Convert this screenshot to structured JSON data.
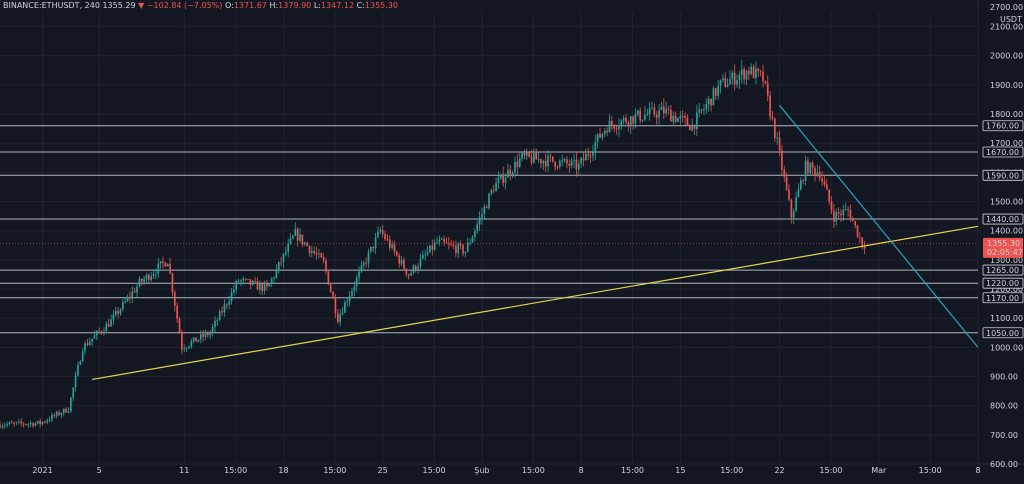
{
  "header": {
    "symbol": "BINANCE:ETHUSDT, 240",
    "last": "1355.29",
    "change": "▼ −102.84 (−7.05%)",
    "open_label": "O:",
    "open": "1371.67",
    "high_label": "H:",
    "high": "1379.90",
    "low_label": "L:",
    "low": "1347.12",
    "close_label": "C:",
    "close": "1355.30"
  },
  "price_badge": {
    "price": "1355.30",
    "countdown": "02:05:47",
    "color": "#ef5350"
  },
  "colors": {
    "up": "#26a69a",
    "down": "#ef5350",
    "trend_support": "#e5d54a",
    "trend_resistance": "#29a3c4",
    "level": "#b2b5be",
    "background": "#131722",
    "grid": "#1f2331"
  },
  "chart_data": {
    "type": "candlestick",
    "title": "",
    "symbol": "BINANCE:ETHUSDT",
    "interval": "240",
    "currency": "USDT",
    "y_axis": {
      "range": [
        600,
        2700
      ],
      "ticks": [
        600,
        700,
        800,
        900,
        1000,
        1100,
        1200,
        1300,
        1400,
        1500,
        1600,
        1700,
        1800,
        1900,
        2000,
        2100
      ],
      "tick_labels": [
        "600.00",
        "700.00",
        "800.00",
        "900.00",
        "1000.00",
        "1100.00",
        "1200.00",
        "1300.00",
        "1400.00",
        "1500.00",
        "1600.00",
        "1700.00",
        "1800.00",
        "1900.00",
        "2000.00",
        "2100.00"
      ],
      "top_label": "2700.00",
      "unit_label": "USDT"
    },
    "x_axis": {
      "range": [
        "2020-12-29",
        "2021-03-08"
      ],
      "ticks": [
        {
          "t": "2021-01-01",
          "label": "2021"
        },
        {
          "t": "2021-01-05",
          "label": "5"
        },
        {
          "t": "2021-01-11",
          "label": "11"
        },
        {
          "t": "2021-01-14 15:00",
          "label": "15:00"
        },
        {
          "t": "2021-01-18",
          "label": "18"
        },
        {
          "t": "2021-01-21 15:00",
          "label": "15:00"
        },
        {
          "t": "2021-01-25",
          "label": "25"
        },
        {
          "t": "2021-01-28 15:00",
          "label": "15:00"
        },
        {
          "t": "2021-02-01",
          "label": "Şub"
        },
        {
          "t": "2021-02-04 15:00",
          "label": "15:00"
        },
        {
          "t": "2021-02-08",
          "label": "8"
        },
        {
          "t": "2021-02-11 15:00",
          "label": "15:00"
        },
        {
          "t": "2021-02-15",
          "label": "15"
        },
        {
          "t": "2021-02-18 15:00",
          "label": "15:00"
        },
        {
          "t": "2021-02-22",
          "label": "22"
        },
        {
          "t": "2021-02-25 15:00",
          "label": "15:00"
        },
        {
          "t": "2021-03-01",
          "label": "Mar"
        },
        {
          "t": "2021-03-04 15:00",
          "label": "15:00"
        },
        {
          "t": "2021-03-08",
          "label": "8"
        }
      ]
    },
    "horizontal_levels": [
      {
        "price": 1760,
        "label": "1760.00"
      },
      {
        "price": 1670,
        "label": "1670.00"
      },
      {
        "price": 1590,
        "label": "1590.00"
      },
      {
        "price": 1440,
        "label": "1440.00"
      },
      {
        "price": 1265,
        "label": "1265.00"
      },
      {
        "price": 1220,
        "label": "1220.00"
      },
      {
        "price": 1170,
        "label": "1170.00"
      },
      {
        "price": 1050,
        "label": "1050.00"
      }
    ],
    "trendlines": [
      {
        "role": "support",
        "from": {
          "t": "2021-01-04 12:00",
          "price": 890
        },
        "to": {
          "t": "2021-03-08",
          "price": 1415
        }
      },
      {
        "role": "resistance",
        "from": {
          "t": "2021-02-22",
          "price": 1830
        },
        "to": {
          "t": "2021-03-08",
          "price": 1000
        }
      }
    ],
    "price_path": [
      {
        "t": "2020-12-29",
        "price": 735
      },
      {
        "t": "2021-01-01",
        "price": 740
      },
      {
        "t": "2021-01-03",
        "price": 790
      },
      {
        "t": "2021-01-04",
        "price": 1000
      },
      {
        "t": "2021-01-06",
        "price": 1090
      },
      {
        "t": "2021-01-08",
        "price": 1220
      },
      {
        "t": "2021-01-10",
        "price": 1300
      },
      {
        "t": "2021-01-11",
        "price": 1000
      },
      {
        "t": "2021-01-13",
        "price": 1050
      },
      {
        "t": "2021-01-15",
        "price": 1230
      },
      {
        "t": "2021-01-17",
        "price": 1200
      },
      {
        "t": "2021-01-19",
        "price": 1390
      },
      {
        "t": "2021-01-21",
        "price": 1290
      },
      {
        "t": "2021-01-22",
        "price": 1100
      },
      {
        "t": "2021-01-24",
        "price": 1300
      },
      {
        "t": "2021-01-25",
        "price": 1400
      },
      {
        "t": "2021-01-27",
        "price": 1250
      },
      {
        "t": "2021-01-29",
        "price": 1360
      },
      {
        "t": "2021-01-31",
        "price": 1330
      },
      {
        "t": "2021-02-02",
        "price": 1550
      },
      {
        "t": "2021-02-04",
        "price": 1650
      },
      {
        "t": "2021-02-06",
        "price": 1640
      },
      {
        "t": "2021-02-08",
        "price": 1620
      },
      {
        "t": "2021-02-10",
        "price": 1760
      },
      {
        "t": "2021-02-12",
        "price": 1790
      },
      {
        "t": "2021-02-14",
        "price": 1810
      },
      {
        "t": "2021-02-16",
        "price": 1760
      },
      {
        "t": "2021-02-18",
        "price": 1900
      },
      {
        "t": "2021-02-20",
        "price": 1950
      },
      {
        "t": "2021-02-21",
        "price": 1920
      },
      {
        "t": "2021-02-22",
        "price": 1700
      },
      {
        "t": "2021-02-23",
        "price": 1450
      },
      {
        "t": "2021-02-24",
        "price": 1620
      },
      {
        "t": "2021-02-25",
        "price": 1600
      },
      {
        "t": "2021-02-26",
        "price": 1450
      },
      {
        "t": "2021-02-27",
        "price": 1470
      },
      {
        "t": "2021-02-28",
        "price": 1355
      }
    ]
  }
}
